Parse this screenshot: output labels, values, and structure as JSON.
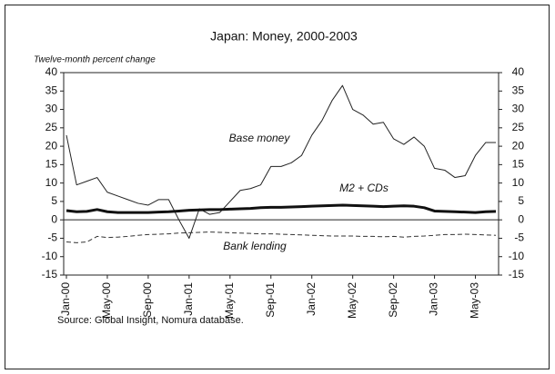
{
  "chart_data": {
    "type": "line",
    "title": "Japan: Money, 2000-2003",
    "ylabel": "Twelve-month percent change",
    "source": "Source: Global Insight, Nomura database.",
    "categories": [
      "Jan-00",
      null,
      null,
      null,
      "May-00",
      null,
      null,
      null,
      "Sep-00",
      null,
      null,
      null,
      "Jan-01",
      null,
      null,
      null,
      "May-01",
      null,
      null,
      null,
      "Sep-01",
      null,
      null,
      null,
      "Jan-02",
      null,
      null,
      null,
      "May-02",
      null,
      null,
      null,
      "Sep-02",
      null,
      null,
      null,
      "Jan-03",
      null,
      null,
      null,
      "May-03",
      null,
      null
    ],
    "series": [
      {
        "name": "Base money",
        "color": "#222222",
        "style": "solid",
        "width": 1,
        "values": [
          23,
          9.5,
          10.5,
          11.5,
          7.5,
          6.5,
          5.5,
          4.5,
          4,
          5.5,
          5.5,
          0,
          -5,
          3,
          1.5,
          2,
          5,
          8,
          8.5,
          9.5,
          14.5,
          14.5,
          15.5,
          17.5,
          23,
          27,
          32.5,
          36.5,
          30,
          28.5,
          26,
          26.5,
          22,
          20.5,
          22.5,
          20,
          14,
          13.5,
          11.5,
          12,
          17.5,
          21,
          21
        ]
      },
      {
        "name": "M2 + CDs",
        "color": "#111111",
        "style": "solid",
        "width": 3,
        "values": [
          2.5,
          2.2,
          2.3,
          2.8,
          2.2,
          2,
          2,
          2,
          2,
          2.1,
          2.2,
          2.4,
          2.6,
          2.7,
          2.8,
          2.8,
          2.9,
          3,
          3.1,
          3.3,
          3.4,
          3.4,
          3.5,
          3.6,
          3.7,
          3.8,
          3.9,
          4,
          3.9,
          3.8,
          3.7,
          3.6,
          3.7,
          3.8,
          3.7,
          3.3,
          2.4,
          2.3,
          2.2,
          2.1,
          2,
          2.2,
          2.3
        ]
      },
      {
        "name": "Bank lending",
        "color": "#333333",
        "style": "dashed",
        "width": 1,
        "values": [
          -6,
          -6.2,
          -6,
          -4.5,
          -4.8,
          -4.7,
          -4.5,
          -4.2,
          -4,
          -3.9,
          -3.8,
          -3.6,
          -3.5,
          -3.4,
          -3.3,
          -3.4,
          -3.5,
          -3.6,
          -3.7,
          -3.8,
          -3.8,
          -3.9,
          -4,
          -4.1,
          -4.2,
          -4.3,
          -4.4,
          -4.4,
          -4.4,
          -4.5,
          -4.5,
          -4.6,
          -4.5,
          -4.7,
          -4.5,
          -4.4,
          -4.2,
          -4,
          -4,
          -3.9,
          -4,
          -4.1,
          -4.2
        ]
      }
    ],
    "ylim": [
      -15,
      40
    ],
    "yticks": [
      -15,
      -10,
      -5,
      0,
      5,
      10,
      15,
      20,
      25,
      30,
      35,
      40
    ],
    "y2lim": [
      -15,
      40
    ],
    "y2ticks": [
      -15,
      -10,
      -5,
      0,
      5,
      10,
      15,
      20,
      25,
      30,
      35,
      40
    ]
  }
}
